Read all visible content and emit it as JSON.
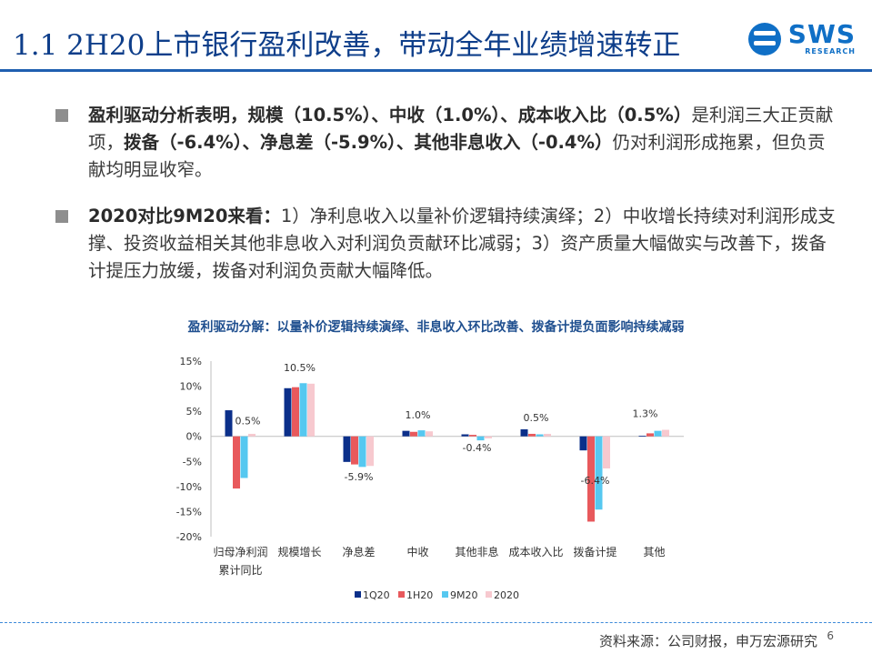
{
  "header": {
    "title": "1.1 2H20上市银行盈利改善，带动全年业绩增速转正",
    "logo_text": "SWS",
    "logo_subtext": "RESEARCH"
  },
  "bullets": [
    {
      "b1": "盈利驱动分析表明，规模（10.5%）、中收（1.0%）、成本收入比（0.5%）",
      "t1": "是利润三大正贡献项，",
      "b2": "拨备（-6.4%）、净息差（-5.9%）、其他非息收入（-0.4%）",
      "t2": "仍对利润形成拖累，但负贡献均明显收窄。"
    },
    {
      "b1": "2020对比9M20来看：",
      "t1": "1）净利息收入以量补价逻辑持续演绎；2）中收增长持续对利润形成支撑、投资收益相关其他非息收入对利润负贡献环比减弱；3）资产质量大幅做实与改善下，拨备计提压力放缓，拨备对利润负贡献大幅降低。"
    }
  ],
  "chart_data": {
    "type": "bar",
    "title": "盈利驱动分解：以量补价逻辑持续演绎、非息收入环比改善、拨备计提负面影响持续减弱",
    "categories": [
      "归母净利润累计同比",
      "规模增长",
      "净息差",
      "中收",
      "其他非息",
      "成本收入比",
      "拨备计提",
      "其他"
    ],
    "category_lines": [
      [
        "归母净利润",
        "累计同比"
      ],
      [
        "规模增长"
      ],
      [
        "净息差"
      ],
      [
        "中收"
      ],
      [
        "其他非息"
      ],
      [
        "成本收入比"
      ],
      [
        "拨备计提"
      ],
      [
        "其他"
      ]
    ],
    "series": [
      {
        "name": "1Q20",
        "color": "#0b2f8a",
        "values": [
          5.2,
          9.6,
          -5.1,
          1.1,
          0.4,
          1.4,
          -2.8,
          0.1
        ]
      },
      {
        "name": "1H20",
        "color": "#e8595c",
        "values": [
          -10.4,
          9.8,
          -5.6,
          0.9,
          0.3,
          0.5,
          -17.0,
          0.6
        ]
      },
      {
        "name": "9M20",
        "color": "#56c8f0",
        "values": [
          -8.3,
          10.6,
          -6.1,
          1.2,
          -0.8,
          0.4,
          -14.6,
          1.1
        ]
      },
      {
        "name": "2020",
        "color": "#f7c9cf",
        "values": [
          0.5,
          10.5,
          -5.9,
          1.0,
          -0.4,
          0.5,
          -6.4,
          1.3
        ]
      }
    ],
    "data_labels": [
      "0.5%",
      "10.5%",
      "-5.9%",
      "1.0%",
      "-0.4%",
      "0.5%",
      "-6.4%",
      "1.3%"
    ],
    "yticks": [
      15,
      10,
      5,
      0,
      -5,
      -10,
      -15,
      -20
    ],
    "ytick_labels": [
      "15%",
      "10%",
      "5%",
      "0%",
      "-5%",
      "-10%",
      "-15%",
      "-20%"
    ],
    "ylim": [
      -20,
      15
    ],
    "xlabel": "",
    "ylabel": "",
    "grid": false,
    "legend_position": "bottom"
  },
  "footer": {
    "source": "资料来源：公司财报，申万宏源研究",
    "page": "6"
  }
}
